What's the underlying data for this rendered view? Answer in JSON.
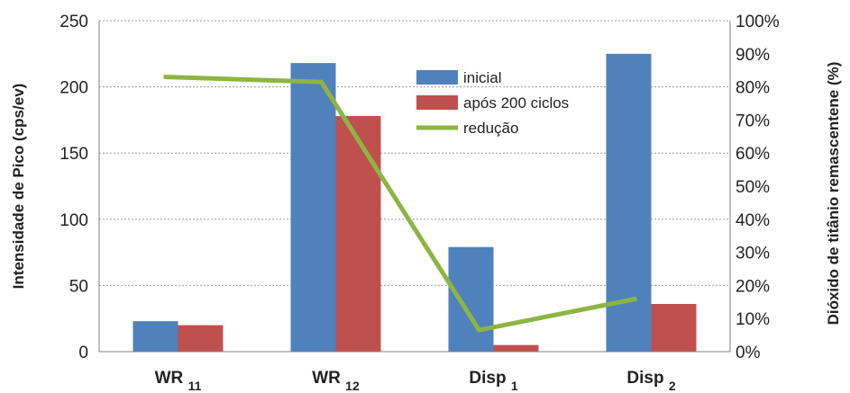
{
  "chart_data": {
    "type": "bar",
    "categories": [
      {
        "base": "WR",
        "sub": "11"
      },
      {
        "base": "WR",
        "sub": "12"
      },
      {
        "base": "Disp",
        "sub": "1"
      },
      {
        "base": "Disp",
        "sub": "2"
      }
    ],
    "series": [
      {
        "name": "inicial",
        "type": "bar",
        "axis": "left",
        "color": "#4F81BD",
        "values": [
          23,
          218,
          79,
          225
        ]
      },
      {
        "name": "após 200 ciclos",
        "type": "bar",
        "axis": "left",
        "color": "#C0504D",
        "values": [
          20,
          178,
          5,
          36
        ]
      },
      {
        "name": "redução",
        "type": "line",
        "axis": "right",
        "color": "#8DB543",
        "values": [
          0.83,
          0.815,
          0.065,
          0.16
        ]
      }
    ],
    "ylabel": "Intensidade de Pico (cps/ev)",
    "y2label": "Dióxido de titânio remascentene (%)",
    "ylim": [
      0,
      250
    ],
    "y2lim": [
      0,
      1
    ],
    "yticks": [
      "0",
      "50",
      "100",
      "150",
      "200",
      "250"
    ],
    "y2ticks": [
      "0%",
      "10%",
      "20%",
      "30%",
      "40%",
      "50%",
      "60%",
      "70%",
      "80%",
      "90%",
      "100%"
    ],
    "grid": true,
    "legend_position": "top-right-inside"
  }
}
